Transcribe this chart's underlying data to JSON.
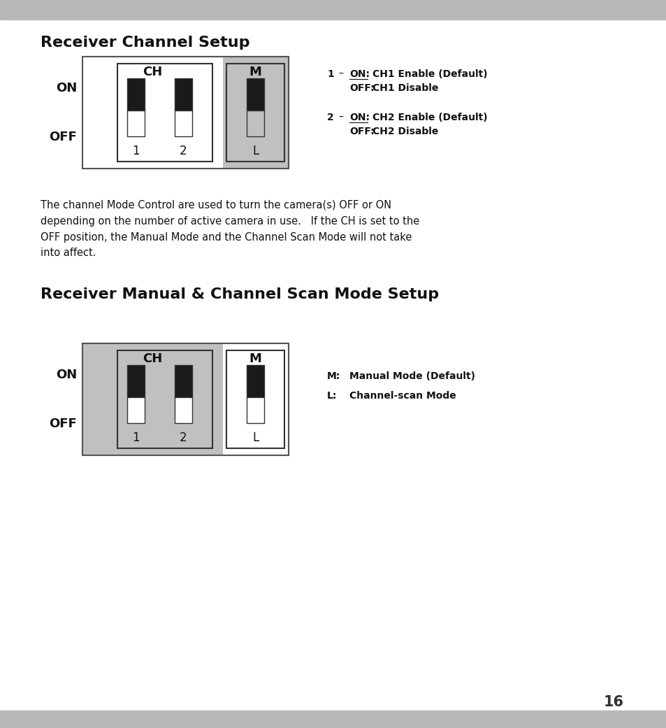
{
  "bg_color": "#b8b8b8",
  "page_bg": "#ffffff",
  "title1": "Receiver Channel Setup",
  "title2": "Receiver Manual & Channel Scan Mode Setup",
  "body_text": "The channel Mode Control are used to turn the camera(s) OFF or ON\ndepending on the number of active camera in use.   If the CH is set to the\nOFF position, the Manual Mode and the Channel Scan Mode will not take\ninto affect.",
  "annotations1": [
    {
      "num": "1",
      "dash": "–",
      "label1": "ON:",
      "desc1": "CH1 Enable (Default)",
      "label2": "OFF:",
      "desc2": "CH1 Disable"
    },
    {
      "num": "2",
      "dash": "–",
      "label1": "ON:",
      "desc1": "CH2 Enable (Default)",
      "label2": "OFF:",
      "desc2": "CH2 Disable"
    }
  ],
  "annotations2": [
    {
      "label": "M:",
      "desc": "Manual Mode (Default)"
    },
    {
      "label": "L:",
      "desc": "Channel-scan Mode"
    }
  ],
  "page_num": "16",
  "gray_color": "#b8b8b8",
  "switch_black": "#1a1a1a",
  "switch_white": "#ffffff",
  "switch_gray_bg": "#c0c0c0"
}
